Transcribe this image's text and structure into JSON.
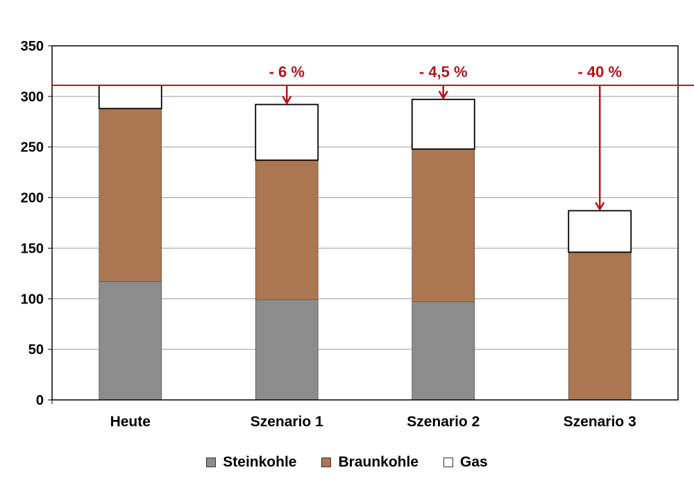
{
  "chart_data": {
    "type": "bar",
    "stacked": true,
    "categories": [
      "Heute",
      "Szenario 1",
      "Szenario 2",
      "Szenario 3"
    ],
    "series": [
      {
        "name": "Steinkohle",
        "color": "#8c8c8c",
        "values": [
          117,
          99,
          97,
          0
        ]
      },
      {
        "name": "Braunkohle",
        "color": "#ab7650",
        "values": [
          171,
          138,
          151,
          146
        ]
      },
      {
        "name": "Gas",
        "color": "#ffffff",
        "values": [
          23,
          55,
          49,
          41
        ]
      }
    ],
    "ylim": [
      0,
      350
    ],
    "yticks": [
      0,
      50,
      100,
      150,
      200,
      250,
      300,
      350
    ],
    "grid": true,
    "legend": "bottom-center",
    "reference_line": {
      "value": 311,
      "color": "#b5121b"
    },
    "annotations": [
      {
        "category": "Szenario 1",
        "label": "- 6 %",
        "target": 292
      },
      {
        "category": "Szenario 2",
        "label": "- 4,5 %",
        "target": 297
      },
      {
        "category": "Szenario 3",
        "label": "- 40 %",
        "target": 187
      }
    ],
    "accent_color": "#b5121b"
  }
}
